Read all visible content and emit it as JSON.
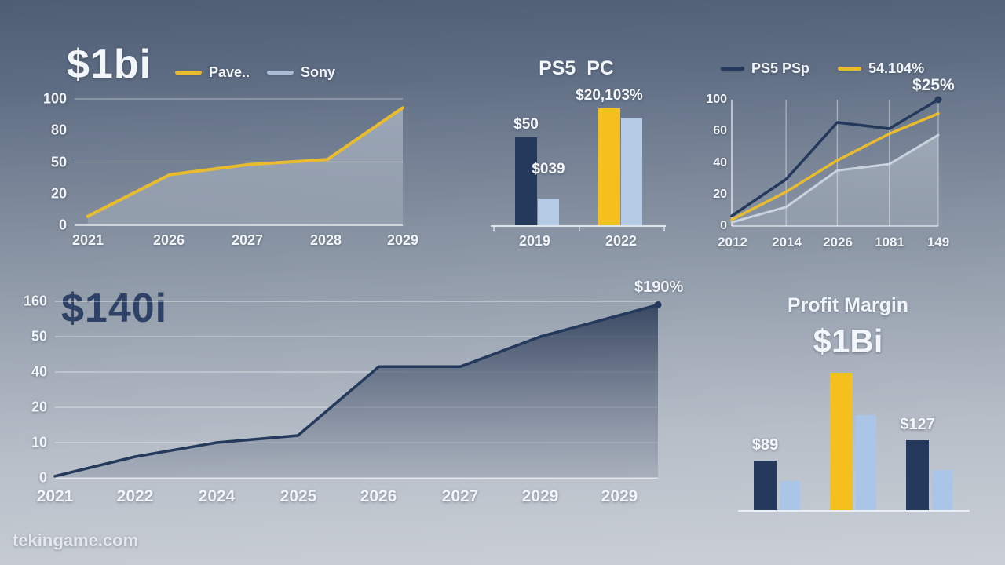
{
  "page": {
    "watermark": "tekingame.com"
  },
  "colors": {
    "yellow": "#E9BC2F",
    "bar_yellow": "#F5C01E",
    "navy": "#24395C",
    "light_blue": "#B5CAE4",
    "pale_line": "#C9D3DF",
    "legend_sony": "#A9BCD4",
    "dark_title": "#2E4166"
  },
  "chart_data": [
    {
      "id": "top-left-line",
      "type": "line",
      "title": "$1bi",
      "legend": [
        {
          "label": "Pave..",
          "color": "#E9BC2F"
        },
        {
          "label": "Sony",
          "color": "#A9BCD4"
        }
      ],
      "x_labels": [
        "2021",
        "2026",
        "2027",
        "2028",
        "2029"
      ],
      "y_tick_labels": [
        "100",
        "80",
        "50",
        "20",
        "0"
      ],
      "grid": "horizontal",
      "legend_position": "top",
      "series": [
        {
          "name": "Pave..",
          "color": "#E9BC2F",
          "values_pct_of_height": [
            7,
            40,
            48,
            52,
            93
          ],
          "area_fill": true
        }
      ]
    },
    {
      "id": "top-middle-bars",
      "type": "bar",
      "title": "PS5  PC",
      "x_labels": [
        "2019",
        "2022"
      ],
      "groups": [
        {
          "category": "2019",
          "bars": [
            {
              "color": "#24395C",
              "height_pct": 75,
              "label": "$50",
              "label_gap": 5
            },
            {
              "color": "#B5CAE4",
              "height_pct": 23,
              "label": "$039",
              "label_gap": 26
            }
          ]
        },
        {
          "category": "2022",
          "bars": [
            {
              "color": "#F5C01E",
              "height_pct": 100,
              "label": "$20,103%",
              "label_gap": 5
            },
            {
              "color": "#B5CAE4",
              "height_pct": 92
            }
          ]
        }
      ]
    },
    {
      "id": "top-right-line",
      "type": "line",
      "title": "",
      "legend": [
        {
          "label": "PS5 PSp",
          "color": "#24395C"
        },
        {
          "label": "54.104%",
          "color": "#E9BC2F"
        }
      ],
      "annotation": {
        "text": "$25%",
        "position": "top-right"
      },
      "x_labels": [
        "2012",
        "2014",
        "2026",
        "1081",
        "149"
      ],
      "y_tick_labels": [
        "100",
        "60",
        "40",
        "20",
        "0"
      ],
      "grid": "vertical",
      "legend_position": "top",
      "series": [
        {
          "name": "PS5 PSp",
          "color": "#24395C",
          "values_pct_of_height": [
            8,
            37,
            82,
            77,
            100
          ],
          "end_dot": true
        },
        {
          "name": "54.104%",
          "color": "#E9BC2F",
          "values_pct_of_height": [
            5,
            27,
            52,
            73,
            89
          ]
        },
        {
          "name": "unlabeled-pale",
          "color": "#C9D3DF",
          "values_pct_of_height": [
            3,
            15,
            44,
            49,
            72
          ],
          "area_fill": true
        }
      ]
    },
    {
      "id": "bottom-left-area",
      "type": "area",
      "title": "$140i",
      "annotation": {
        "text": "$190%",
        "position": "top-right"
      },
      "x_labels": [
        "2021",
        "2022",
        "2024",
        "2025",
        "2026",
        "2027",
        "2029",
        "2029"
      ],
      "y_tick_labels": [
        "160",
        "50",
        "40",
        "20",
        "10",
        "0"
      ],
      "grid": "horizontal",
      "series": [
        {
          "name": "$140i",
          "color": "#24395C",
          "x_fracs": [
            0,
            0.133,
            0.268,
            0.403,
            0.537,
            0.672,
            0.805,
            1
          ],
          "values_pct_of_height": [
            1,
            12,
            20,
            24,
            63,
            63,
            80,
            98
          ],
          "area_fill": true,
          "end_dot": true
        }
      ]
    },
    {
      "id": "bottom-right-bars",
      "type": "bar",
      "title": "Profit Margin",
      "subtitle": "$1Bi",
      "x_labels": [],
      "groups": [
        {
          "bars": [
            {
              "color": "#24395C",
              "height_pct": 36,
              "label": "$89",
              "label_gap": 8
            },
            {
              "color": "#A9C6E8",
              "height_pct": 21
            }
          ]
        },
        {
          "bars": [
            {
              "color": "#F5C01E",
              "height_pct": 100
            },
            {
              "color": "#A9C6E8",
              "height_pct": 69
            }
          ]
        },
        {
          "bars": [
            {
              "color": "#24395C",
              "height_pct": 51,
              "label": "$127",
              "label_gap": 8
            },
            {
              "color": "#A9C6E8",
              "height_pct": 29
            }
          ]
        }
      ]
    }
  ]
}
